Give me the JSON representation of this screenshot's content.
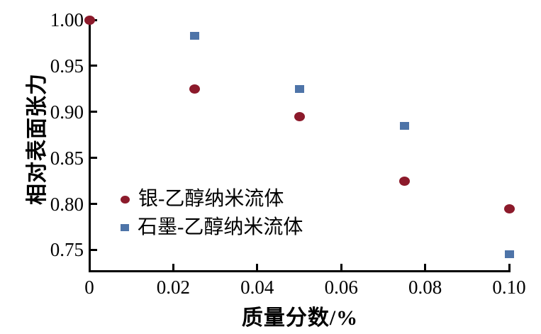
{
  "figure": {
    "background": "#ffffff",
    "axis_color": "#000000",
    "text_color": "#000000"
  },
  "chart_data": {
    "type": "scatter",
    "title": "",
    "xlabel": "质量分数/%",
    "ylabel": "相对表面张力",
    "xlim": [
      0,
      0.1
    ],
    "ylim": [
      0.728,
      1.0
    ],
    "grid": false,
    "legend_position": "inside-lower-left",
    "x_ticks": {
      "values": [
        0,
        0.02,
        0.04,
        0.06,
        0.08,
        0.1
      ],
      "labels": [
        "0",
        "0.02",
        "0.04",
        "0.06",
        "0.08",
        "0.10"
      ]
    },
    "y_ticks": {
      "values": [
        0.75,
        0.8,
        0.85,
        0.9,
        0.95,
        1.0
      ],
      "labels": [
        "0.75",
        "0.80",
        "0.85",
        "0.90",
        "0.95",
        "1.00"
      ]
    },
    "series": [
      {
        "name": "银-乙醇纳米流体",
        "marker": "circle",
        "color": "#8C1A2B",
        "points": [
          [
            0,
            1.0
          ],
          [
            0.025,
            0.925
          ],
          [
            0.05,
            0.895
          ],
          [
            0.075,
            0.825
          ],
          [
            0.1,
            0.795
          ]
        ]
      },
      {
        "name": "石墨-乙醇纳米流体",
        "marker": "square",
        "color": "#4E74A8",
        "points": [
          [
            0.025,
            0.983
          ],
          [
            0.05,
            0.925
          ],
          [
            0.075,
            0.885
          ],
          [
            0.1,
            0.745
          ]
        ]
      }
    ]
  }
}
